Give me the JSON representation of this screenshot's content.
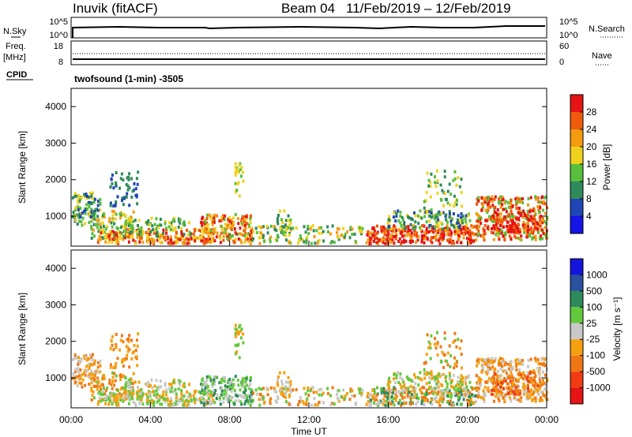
{
  "header": {
    "station": "Inuvik (fitACF)",
    "beam": "Beam 04",
    "date_range": "11/Feb/2019 – 12/Feb/2019"
  },
  "nsky_panel": {
    "left_label": "N.Sky",
    "left_ticks": [
      "10^5",
      "10^0"
    ],
    "right_ticks": [
      "10^5",
      "10^0"
    ],
    "right_label": "N.Search"
  },
  "freq_panel": {
    "left_label_1": "Freq.",
    "left_label_2": "[MHz]",
    "left_ticks": [
      "18",
      "8"
    ],
    "right_ticks": [
      "60",
      "0"
    ],
    "right_label": "Nave"
  },
  "cpid": {
    "label": "CPID",
    "value": "twofsound (1-min) -3505"
  },
  "chart_data": [
    {
      "type": "heatmap",
      "title": "",
      "ylabel": "Slant Range [km]",
      "xlabel": "",
      "ylim": [
        180,
        4500
      ],
      "yticks": [
        "1000",
        "2000",
        "3000",
        "4000"
      ],
      "colorbar": {
        "label": "Power [dB]",
        "ticks": [
          "4",
          "8",
          "12",
          "16",
          "20",
          "24",
          "28"
        ],
        "colors": [
          "#1414e6",
          "#1e46b4",
          "#2e8a5a",
          "#58bf3c",
          "#f0d21e",
          "#f59b0f",
          "#f05a0a",
          "#e61414"
        ]
      }
    },
    {
      "type": "heatmap",
      "title": "",
      "ylabel": "Slant Range [km]",
      "xlabel": "Time UT",
      "ylim": [
        180,
        4500
      ],
      "yticks": [
        "1000",
        "2000",
        "3000",
        "4000"
      ],
      "xticks": [
        "00:00",
        "04:00",
        "08:00",
        "12:00",
        "16:00",
        "20:00",
        "00:00"
      ],
      "colorbar": {
        "label": "Velocity [m s⁻¹]",
        "ticks": [
          "1000",
          "500",
          "100",
          "25",
          "-25",
          "-100",
          "-500",
          "-1000"
        ],
        "colors": [
          "#1414dc",
          "#2a50a0",
          "#2e8a5a",
          "#64c83c",
          "#c8c8c8",
          "#f5a00f",
          "#f07814",
          "#f03c14",
          "#e61414"
        ]
      }
    }
  ]
}
